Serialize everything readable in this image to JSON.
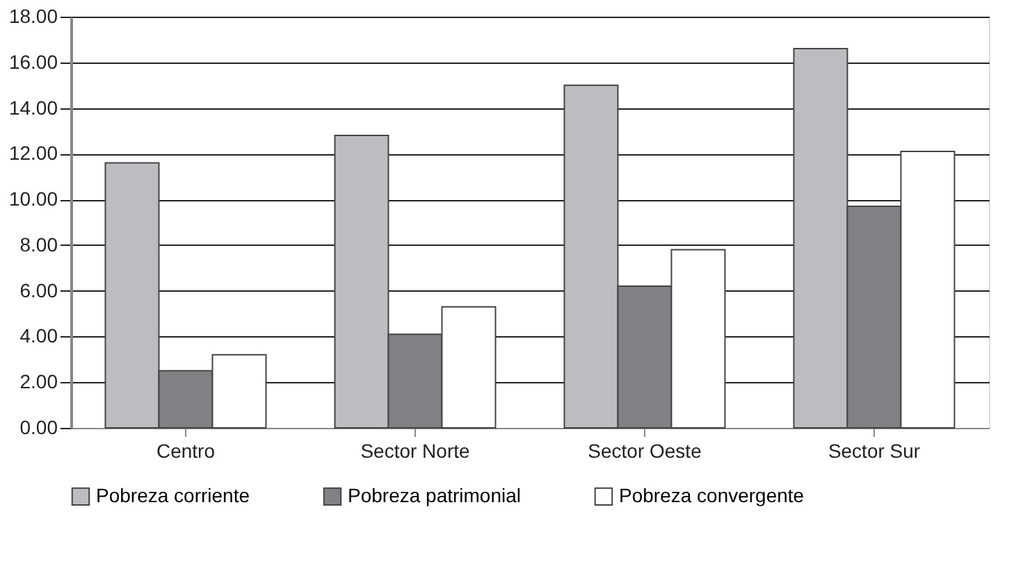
{
  "chart_data": {
    "type": "bar",
    "categories": [
      "Centro",
      "Sector Norte",
      "Sector Oeste",
      "Sector Sur"
    ],
    "series": [
      {
        "name": "Pobreza corriente",
        "color": "#bcbdc1",
        "values": [
          11.6,
          12.8,
          15.0,
          16.6
        ]
      },
      {
        "name": "Pobreza patrimonial",
        "color": "#808185",
        "values": [
          2.5,
          4.1,
          6.2,
          9.7
        ]
      },
      {
        "name": "Pobreza convergente",
        "color": "#ffffff",
        "values": [
          3.2,
          5.3,
          7.8,
          12.1
        ]
      }
    ],
    "ylim": [
      0,
      18
    ],
    "yticks": [
      {
        "value": 0,
        "label": "0.00"
      },
      {
        "value": 2,
        "label": "2.00"
      },
      {
        "value": 4,
        "label": "4.00"
      },
      {
        "value": 6,
        "label": "6.00"
      },
      {
        "value": 8,
        "label": "8.00"
      },
      {
        "value": 10,
        "label": "10.00"
      },
      {
        "value": 12,
        "label": "12.00"
      },
      {
        "value": 14,
        "label": "14.00"
      },
      {
        "value": 16,
        "label": "16.00"
      },
      {
        "value": 18,
        "label": "18.00"
      }
    ],
    "grid": "y",
    "legend": "bottom"
  }
}
